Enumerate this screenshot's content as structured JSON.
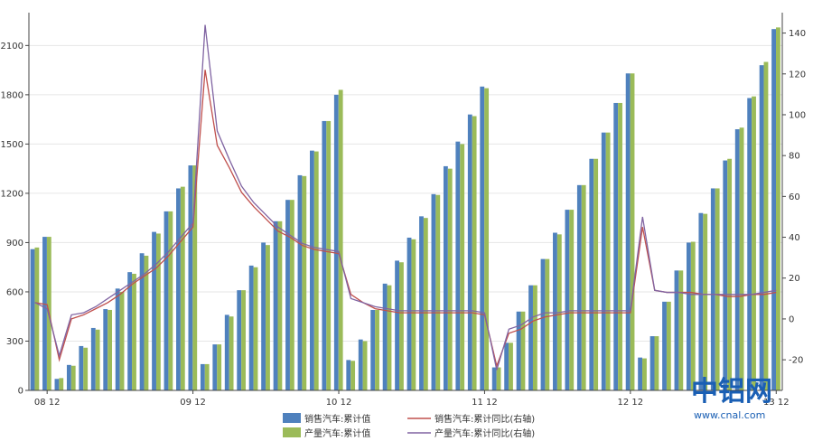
{
  "chart_data": {
    "type": "bar",
    "x_tick_labels": [
      "08 12",
      "09 12",
      "10 12",
      "11 12",
      "12 12",
      "13 12"
    ],
    "x_tick_index": [
      1,
      13,
      25,
      37,
      49,
      61
    ],
    "y_left": {
      "ylim": [
        0,
        2300
      ],
      "ticks": [
        0,
        300,
        600,
        900,
        1200,
        1500,
        1800,
        2100
      ]
    },
    "y_right": {
      "ylim": [
        -35,
        150
      ],
      "ticks": [
        -20,
        0,
        20,
        40,
        60,
        80,
        100,
        120,
        140
      ]
    },
    "legend_position": "bottom",
    "series": [
      {
        "name": "销售汽车:累计值",
        "kind": "bar",
        "axis": "left",
        "color": "#4f81bd",
        "values": [
          860,
          935,
          70,
          155,
          270,
          380,
          495,
          620,
          720,
          835,
          965,
          1090,
          1230,
          1370,
          160,
          280,
          460,
          610,
          760,
          900,
          1030,
          1160,
          1310,
          1460,
          1640,
          1800,
          185,
          310,
          490,
          650,
          790,
          930,
          1060,
          1195,
          1365,
          1515,
          1680,
          1850,
          140,
          290,
          480,
          640,
          800,
          960,
          1100,
          1250,
          1410,
          1570,
          1750,
          1930,
          200,
          330,
          540,
          730,
          900,
          1080,
          1230,
          1400,
          1590,
          1780,
          1980,
          2200
        ]
      },
      {
        "name": "产量汽车:累计值",
        "kind": "bar",
        "axis": "left",
        "color": "#9bbb59",
        "values": [
          870,
          935,
          75,
          150,
          260,
          370,
          490,
          600,
          710,
          820,
          955,
          1090,
          1240,
          1370,
          160,
          280,
          450,
          610,
          750,
          885,
          1030,
          1160,
          1305,
          1455,
          1640,
          1830,
          180,
          300,
          490,
          640,
          780,
          920,
          1050,
          1190,
          1350,
          1500,
          1670,
          1840,
          140,
          290,
          480,
          640,
          800,
          950,
          1100,
          1250,
          1410,
          1570,
          1750,
          1930,
          195,
          330,
          540,
          730,
          905,
          1075,
          1230,
          1410,
          1600,
          1790,
          2000,
          2210
        ]
      },
      {
        "name": "销售汽车:累计同比(右轴)",
        "kind": "line",
        "axis": "right",
        "color": "#c0504d",
        "values": [
          8,
          7,
          -20,
          0,
          2,
          5,
          8,
          12,
          17,
          21,
          25,
          31,
          38,
          45,
          122,
          85,
          74,
          62,
          55,
          49,
          43,
          40,
          36,
          34,
          33,
          32,
          12,
          8,
          5,
          4,
          3,
          3,
          3,
          3,
          3,
          3,
          3,
          2,
          -23,
          -7,
          -5,
          -1,
          1,
          2,
          3,
          3,
          3,
          3,
          3,
          3,
          45,
          14,
          13,
          13,
          13,
          12,
          12,
          11,
          11,
          12,
          12,
          13
        ]
      },
      {
        "name": "产量汽车:累计同比(右轴)",
        "kind": "line",
        "axis": "right",
        "color": "#8064a2",
        "values": [
          8,
          5,
          -18,
          2,
          3,
          6,
          10,
          14,
          18,
          22,
          27,
          33,
          40,
          47,
          144,
          92,
          78,
          65,
          57,
          51,
          45,
          41,
          37,
          35,
          34,
          33,
          10,
          8,
          6,
          5,
          4,
          4,
          4,
          4,
          4,
          4,
          4,
          3,
          -25,
          -5,
          -3,
          1,
          3,
          3,
          4,
          4,
          4,
          4,
          4,
          4,
          50,
          14,
          13,
          13,
          12,
          12,
          12,
          12,
          12,
          12,
          13,
          14
        ]
      }
    ]
  },
  "watermark": {
    "brand": "中铝网",
    "url": "www.cnal.com"
  }
}
